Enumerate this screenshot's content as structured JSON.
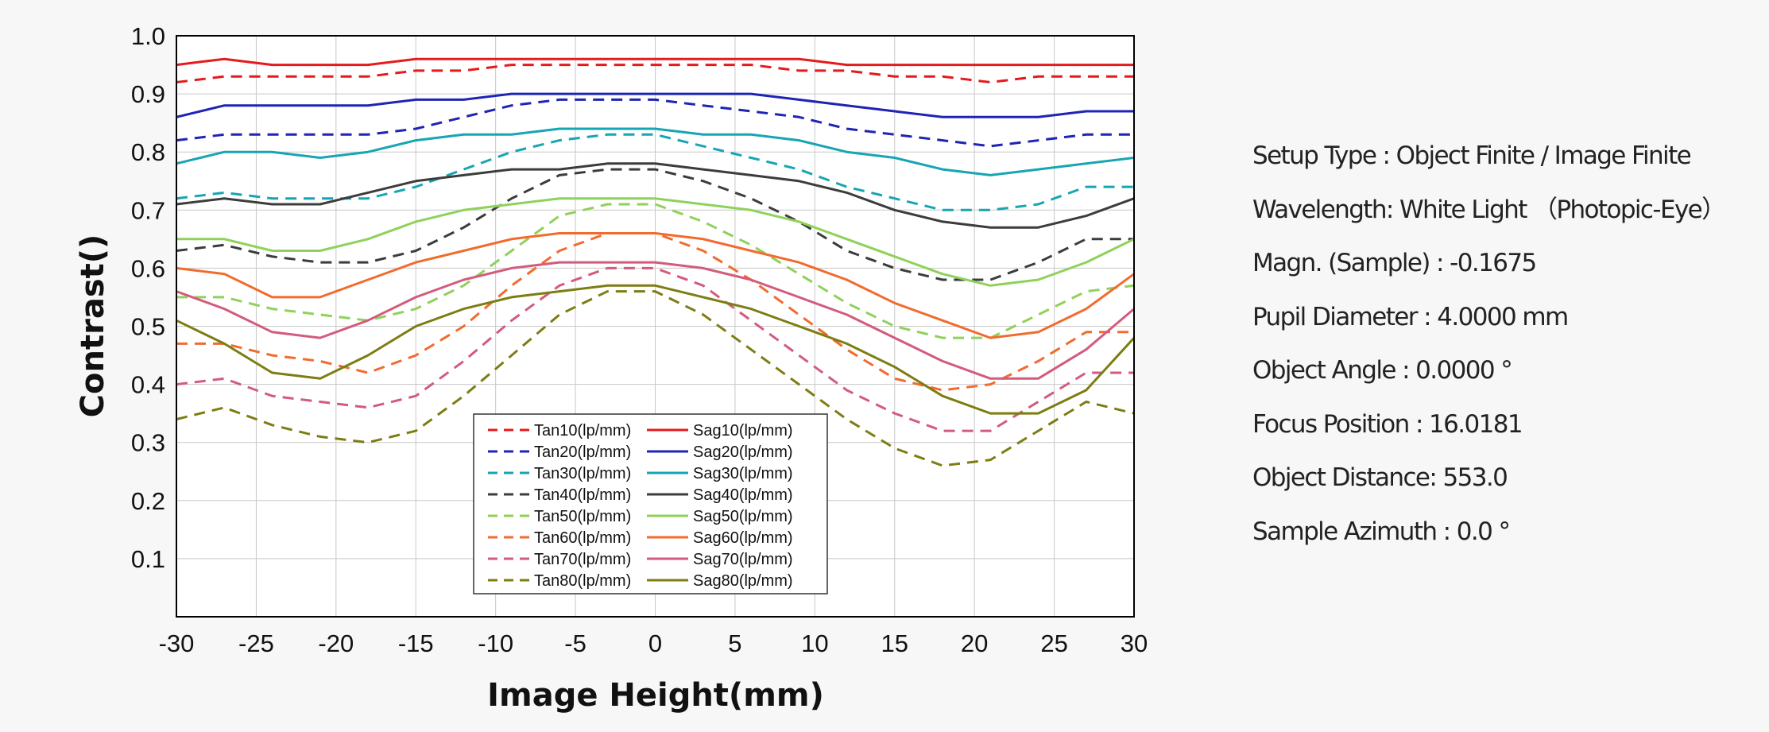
{
  "chart_data": {
    "type": "line",
    "xlabel": "Image Height(mm)",
    "ylabel": "Contrast()",
    "xlim": [
      -30,
      30
    ],
    "ylim": [
      0,
      1.0
    ],
    "xticks": [
      -30,
      -25,
      -20,
      -15,
      -10,
      -5,
      0,
      5,
      10,
      15,
      20,
      25,
      30
    ],
    "yticks": [
      0.1,
      0.2,
      0.3,
      0.4,
      0.5,
      0.6,
      0.7,
      0.8,
      0.9,
      1.0
    ],
    "ytick_labels": [
      "0.1",
      "0.2",
      "0.3",
      "0.4",
      "0.5",
      "0.6",
      "0.7",
      "0.8",
      "0.9",
      "1.0"
    ],
    "grid": true,
    "legend_position": "bottom-center",
    "x": [
      -30,
      -27,
      -24,
      -21,
      -18,
      -15,
      -12,
      -9,
      -6,
      -3,
      0,
      3,
      6,
      9,
      12,
      15,
      18,
      21,
      24,
      27,
      30
    ],
    "series": [
      {
        "name": "Tan10(lp/mm)",
        "color": "#e41a1c",
        "dash": true,
        "values": [
          0.92,
          0.93,
          0.93,
          0.93,
          0.93,
          0.94,
          0.94,
          0.95,
          0.95,
          0.95,
          0.95,
          0.95,
          0.95,
          0.94,
          0.94,
          0.93,
          0.93,
          0.92,
          0.93,
          0.93,
          0.93
        ]
      },
      {
        "name": "Sag10(lp/mm)",
        "color": "#e41a1c",
        "dash": false,
        "values": [
          0.95,
          0.96,
          0.95,
          0.95,
          0.95,
          0.96,
          0.96,
          0.96,
          0.96,
          0.96,
          0.96,
          0.96,
          0.96,
          0.96,
          0.95,
          0.95,
          0.95,
          0.95,
          0.95,
          0.95,
          0.95
        ]
      },
      {
        "name": "Tan20(lp/mm)",
        "color": "#1f24b4",
        "dash": true,
        "values": [
          0.82,
          0.83,
          0.83,
          0.83,
          0.83,
          0.84,
          0.86,
          0.88,
          0.89,
          0.89,
          0.89,
          0.88,
          0.87,
          0.86,
          0.84,
          0.83,
          0.82,
          0.81,
          0.82,
          0.83,
          0.83
        ]
      },
      {
        "name": "Sag20(lp/mm)",
        "color": "#1f24b4",
        "dash": false,
        "values": [
          0.86,
          0.88,
          0.88,
          0.88,
          0.88,
          0.89,
          0.89,
          0.9,
          0.9,
          0.9,
          0.9,
          0.9,
          0.9,
          0.89,
          0.88,
          0.87,
          0.86,
          0.86,
          0.86,
          0.87,
          0.87
        ]
      },
      {
        "name": "Tan30(lp/mm)",
        "color": "#17a5b4",
        "dash": true,
        "values": [
          0.72,
          0.73,
          0.72,
          0.72,
          0.72,
          0.74,
          0.77,
          0.8,
          0.82,
          0.83,
          0.83,
          0.81,
          0.79,
          0.77,
          0.74,
          0.72,
          0.7,
          0.7,
          0.71,
          0.74,
          0.74
        ]
      },
      {
        "name": "Sag30(lp/mm)",
        "color": "#17a5b4",
        "dash": false,
        "values": [
          0.78,
          0.8,
          0.8,
          0.79,
          0.8,
          0.82,
          0.83,
          0.83,
          0.84,
          0.84,
          0.84,
          0.83,
          0.83,
          0.82,
          0.8,
          0.79,
          0.77,
          0.76,
          0.77,
          0.78,
          0.79
        ]
      },
      {
        "name": "Tan40(lp/mm)",
        "color": "#3c3c3c",
        "dash": true,
        "values": [
          0.63,
          0.64,
          0.62,
          0.61,
          0.61,
          0.63,
          0.67,
          0.72,
          0.76,
          0.77,
          0.77,
          0.75,
          0.72,
          0.68,
          0.63,
          0.6,
          0.58,
          0.58,
          0.61,
          0.65,
          0.65
        ]
      },
      {
        "name": "Sag40(lp/mm)",
        "color": "#3c3c3c",
        "dash": false,
        "values": [
          0.71,
          0.72,
          0.71,
          0.71,
          0.73,
          0.75,
          0.76,
          0.77,
          0.77,
          0.78,
          0.78,
          0.77,
          0.76,
          0.75,
          0.73,
          0.7,
          0.68,
          0.67,
          0.67,
          0.69,
          0.72
        ]
      },
      {
        "name": "Tan50(lp/mm)",
        "color": "#8fd15a",
        "dash": true,
        "values": [
          0.55,
          0.55,
          0.53,
          0.52,
          0.51,
          0.53,
          0.57,
          0.63,
          0.69,
          0.71,
          0.71,
          0.68,
          0.64,
          0.59,
          0.54,
          0.5,
          0.48,
          0.48,
          0.52,
          0.56,
          0.57
        ]
      },
      {
        "name": "Sag50(lp/mm)",
        "color": "#8fd15a",
        "dash": false,
        "values": [
          0.65,
          0.65,
          0.63,
          0.63,
          0.65,
          0.68,
          0.7,
          0.71,
          0.72,
          0.72,
          0.72,
          0.71,
          0.7,
          0.68,
          0.65,
          0.62,
          0.59,
          0.57,
          0.58,
          0.61,
          0.65
        ]
      },
      {
        "name": "Tan60(lp/mm)",
        "color": "#f26b2e",
        "dash": true,
        "values": [
          0.47,
          0.47,
          0.45,
          0.44,
          0.42,
          0.45,
          0.5,
          0.57,
          0.63,
          0.66,
          0.66,
          0.63,
          0.58,
          0.52,
          0.46,
          0.41,
          0.39,
          0.4,
          0.44,
          0.49,
          0.49
        ]
      },
      {
        "name": "Sag60(lp/mm)",
        "color": "#f26b2e",
        "dash": false,
        "values": [
          0.6,
          0.59,
          0.55,
          0.55,
          0.58,
          0.61,
          0.63,
          0.65,
          0.66,
          0.66,
          0.66,
          0.65,
          0.63,
          0.61,
          0.58,
          0.54,
          0.51,
          0.48,
          0.49,
          0.53,
          0.59
        ]
      },
      {
        "name": "Tan70(lp/mm)",
        "color": "#d35b7d",
        "dash": true,
        "values": [
          0.4,
          0.41,
          0.38,
          0.37,
          0.36,
          0.38,
          0.44,
          0.51,
          0.57,
          0.6,
          0.6,
          0.57,
          0.51,
          0.45,
          0.39,
          0.35,
          0.32,
          0.32,
          0.37,
          0.42,
          0.42
        ]
      },
      {
        "name": "Sag70(lp/mm)",
        "color": "#d35b7d",
        "dash": false,
        "values": [
          0.56,
          0.53,
          0.49,
          0.48,
          0.51,
          0.55,
          0.58,
          0.6,
          0.61,
          0.61,
          0.61,
          0.6,
          0.58,
          0.55,
          0.52,
          0.48,
          0.44,
          0.41,
          0.41,
          0.46,
          0.53
        ]
      },
      {
        "name": "Tan80(lp/mm)",
        "color": "#7d7d13",
        "dash": true,
        "values": [
          0.34,
          0.36,
          0.33,
          0.31,
          0.3,
          0.32,
          0.38,
          0.45,
          0.52,
          0.56,
          0.56,
          0.52,
          0.46,
          0.4,
          0.34,
          0.29,
          0.26,
          0.27,
          0.32,
          0.37,
          0.35
        ]
      },
      {
        "name": "Sag80(lp/mm)",
        "color": "#7d7d13",
        "dash": false,
        "values": [
          0.51,
          0.47,
          0.42,
          0.41,
          0.45,
          0.5,
          0.53,
          0.55,
          0.56,
          0.57,
          0.57,
          0.55,
          0.53,
          0.5,
          0.47,
          0.43,
          0.38,
          0.35,
          0.35,
          0.39,
          0.48
        ]
      }
    ]
  },
  "info": [
    "Setup Type     : Object Finite / Image Finite",
    "Wavelength: White Light  （Photopic-Eye）",
    "Magn. (Sample) : -0.1675",
    "Pupil Diameter : 4.0000 mm",
    "Object Angle   : 0.0000 °",
    "Focus Position : 16.0181",
    "Object Distance: 553.0",
    "Sample Azimuth : 0.0 °"
  ]
}
